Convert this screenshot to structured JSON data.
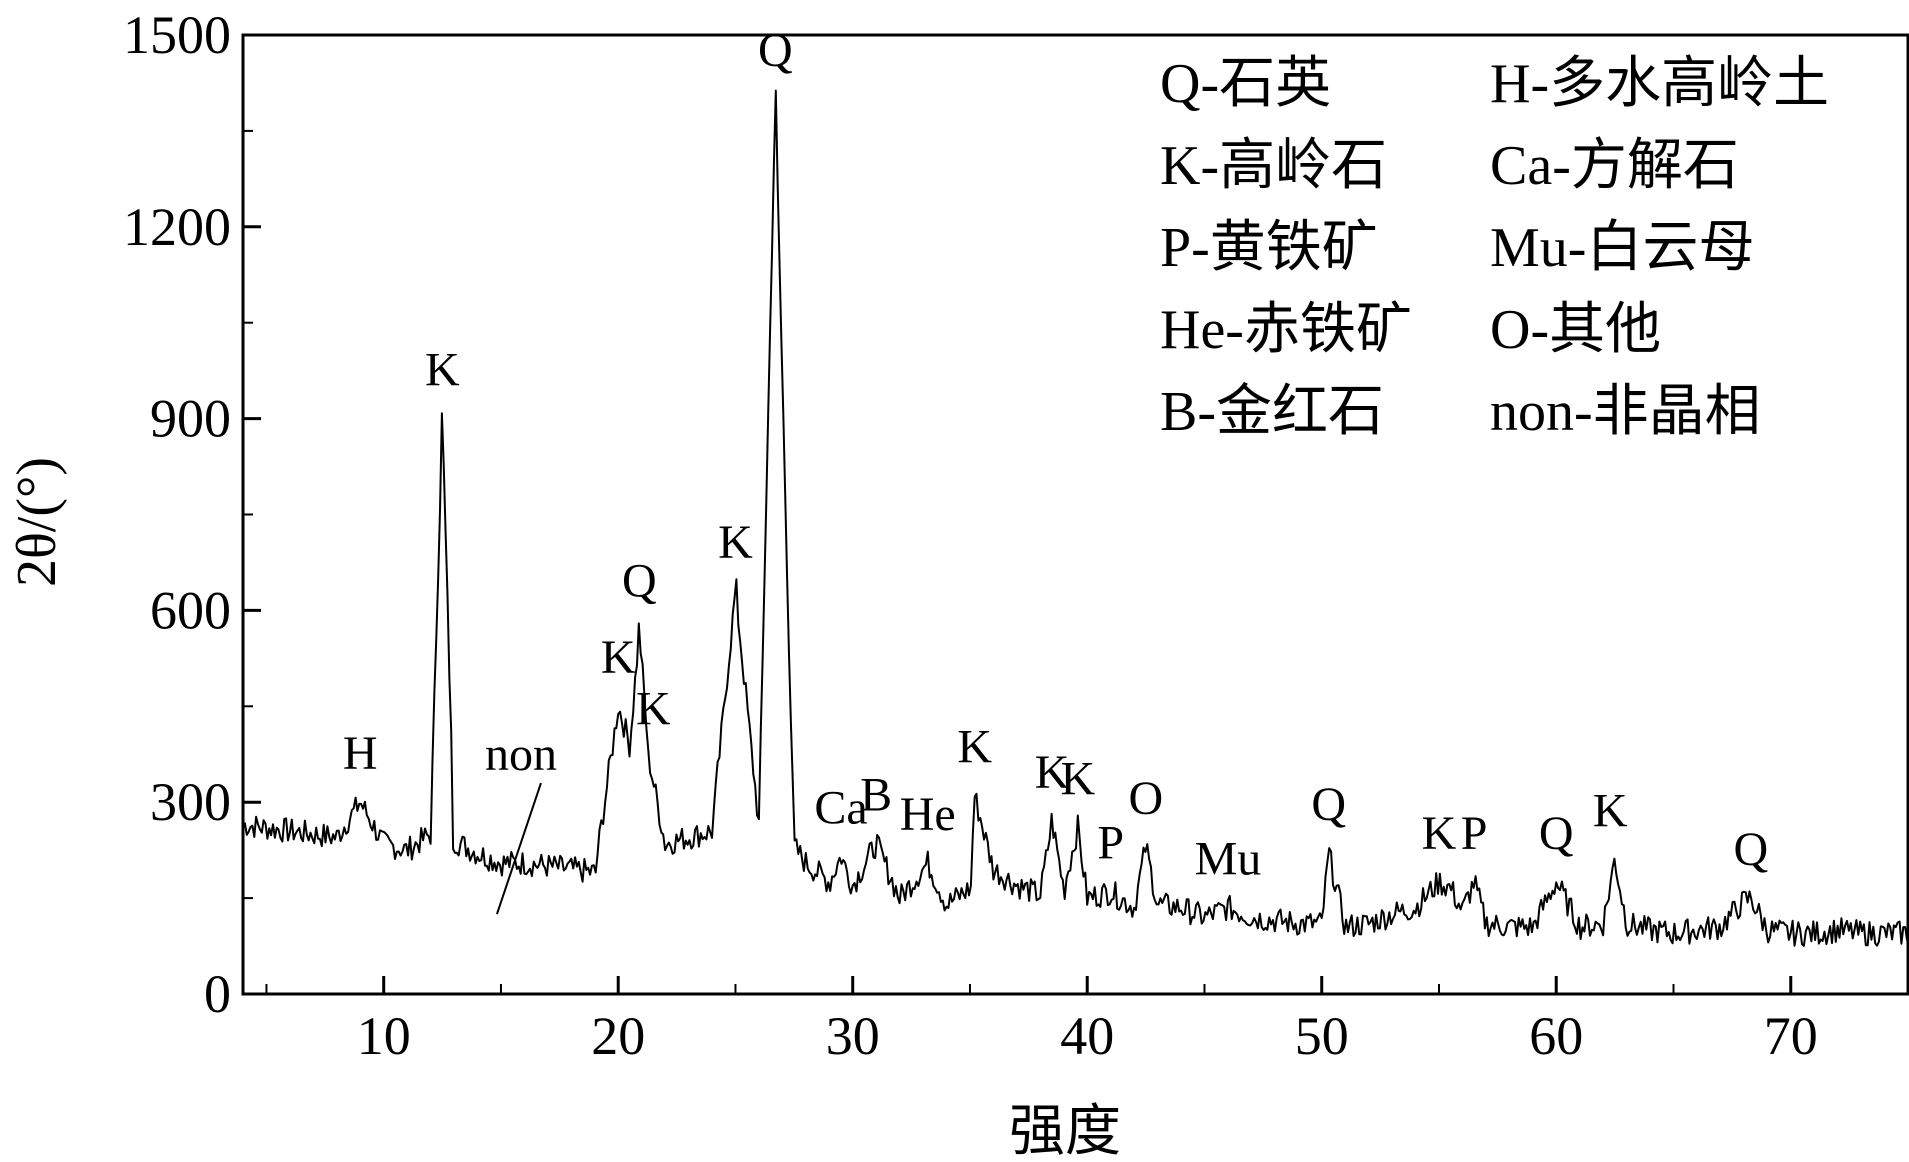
{
  "chart_data": {
    "type": "line",
    "xlabel": "强度",
    "ylabel": "2θ/(°)",
    "xlim": [
      4,
      75
    ],
    "ylim": [
      0,
      1500
    ],
    "xticks": [
      10,
      20,
      30,
      40,
      50,
      60,
      70
    ],
    "yticks": [
      0,
      300,
      600,
      900,
      1200,
      1500
    ],
    "grid": false,
    "legend_position": "top-right",
    "series": [
      {
        "style": "noisy-line",
        "color": "#000000",
        "x": [
          4,
          6,
          8,
          9,
          10,
          11,
          12,
          12.5,
          13,
          14,
          15,
          16,
          17,
          18,
          19,
          20,
          20.5,
          20.9,
          21.3,
          22,
          23,
          24,
          25,
          26,
          26.7,
          27.5,
          28,
          29,
          29.5,
          30,
          31,
          32,
          33.2,
          34,
          35,
          35.2,
          36,
          37,
          38,
          38.5,
          39,
          39.6,
          40,
          41,
          42,
          42.5,
          43,
          44,
          45,
          46,
          47,
          48,
          49,
          50,
          50.3,
          51,
          52,
          53,
          54,
          55,
          55.5,
          56,
          56.5,
          57,
          58,
          59,
          60,
          61,
          62,
          62.5,
          63,
          64,
          65,
          66,
          67,
          68,
          68.3,
          69,
          70,
          71,
          72,
          73,
          74,
          75
        ],
        "y": [
          265,
          255,
          245,
          300,
          235,
          225,
          250,
          900,
          240,
          220,
          205,
          205,
          200,
          195,
          190,
          450,
          390,
          570,
          370,
          235,
          245,
          255,
          630,
          265,
          1400,
          230,
          205,
          175,
          215,
          170,
          235,
          150,
          205,
          140,
          165,
          310,
          195,
          170,
          155,
          270,
          165,
          260,
          150,
          160,
          135,
          230,
          140,
          135,
          120,
          135,
          120,
          115,
          110,
          110,
          220,
          105,
          110,
          125,
          135,
          175,
          165,
          130,
          175,
          110,
          105,
          105,
          175,
          105,
          110,
          210,
          110,
          100,
          95,
          100,
          105,
          145,
          150,
          100,
          95,
          95,
          100,
          95,
          95,
          95
        ]
      }
    ],
    "peak_labels": [
      {
        "text": "H",
        "x": 9.0
      },
      {
        "text": "K",
        "x": 12.5
      },
      {
        "text": "non",
        "x": 15.0
      },
      {
        "text": "K",
        "x": 20.0
      },
      {
        "text": "Q",
        "x": 20.9
      },
      {
        "text": "K",
        "x": 21.5
      },
      {
        "text": "K",
        "x": 25.0
      },
      {
        "text": "Q",
        "x": 26.7
      },
      {
        "text": "Ca",
        "x": 29.5
      },
      {
        "text": "B",
        "x": 31.0
      },
      {
        "text": "He",
        "x": 33.2
      },
      {
        "text": "K",
        "x": 35.2
      },
      {
        "text": "K",
        "x": 38.5
      },
      {
        "text": "K",
        "x": 39.6
      },
      {
        "text": "P",
        "x": 41.0
      },
      {
        "text": "O",
        "x": 42.5
      },
      {
        "text": "Mu",
        "x": 46.0
      },
      {
        "text": "Q",
        "x": 50.3
      },
      {
        "text": "K",
        "x": 55.0
      },
      {
        "text": "P",
        "x": 56.5
      },
      {
        "text": "Q",
        "x": 60.0
      },
      {
        "text": "K",
        "x": 62.3
      },
      {
        "text": "Q",
        "x": 68.3
      }
    ],
    "legend": [
      {
        "text": "Q-石英"
      },
      {
        "text": "H-多水高岭土"
      },
      {
        "text": "K-高岭石"
      },
      {
        "text": "Ca-方解石"
      },
      {
        "text": "P-黄铁矿"
      },
      {
        "text": "Mu-白云母"
      },
      {
        "text": "He-赤铁矿"
      },
      {
        "text": "O-其他"
      },
      {
        "text": "B-金红石"
      },
      {
        "text": "non-非晶相"
      }
    ]
  }
}
